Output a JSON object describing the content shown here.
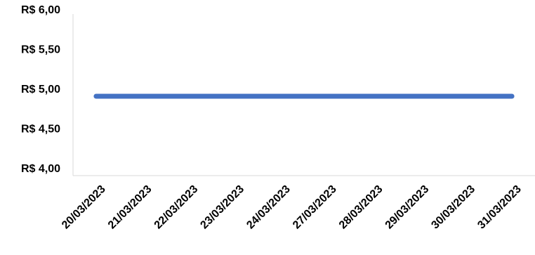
{
  "chart_data": {
    "type": "line",
    "categories": [
      "20/03/2023",
      "21/03/2023",
      "22/03/2023",
      "23/03/2023",
      "24/03/2023",
      "27/03/2023",
      "28/03/2023",
      "29/03/2023",
      "30/03/2023",
      "31/03/2023"
    ],
    "series": [
      {
        "values": [
          5.0,
          5.0,
          5.0,
          5.0,
          5.0,
          5.0,
          5.0,
          5.0,
          5.0,
          5.0
        ],
        "color": "#4472C4"
      }
    ],
    "y_ticks": [
      "R$ 6,00",
      "R$ 5,50",
      "R$ 5,00",
      "R$ 4,50",
      "R$ 4,00"
    ],
    "ylim": [
      4.0,
      6.0
    ],
    "grid": false,
    "legend": "none"
  }
}
